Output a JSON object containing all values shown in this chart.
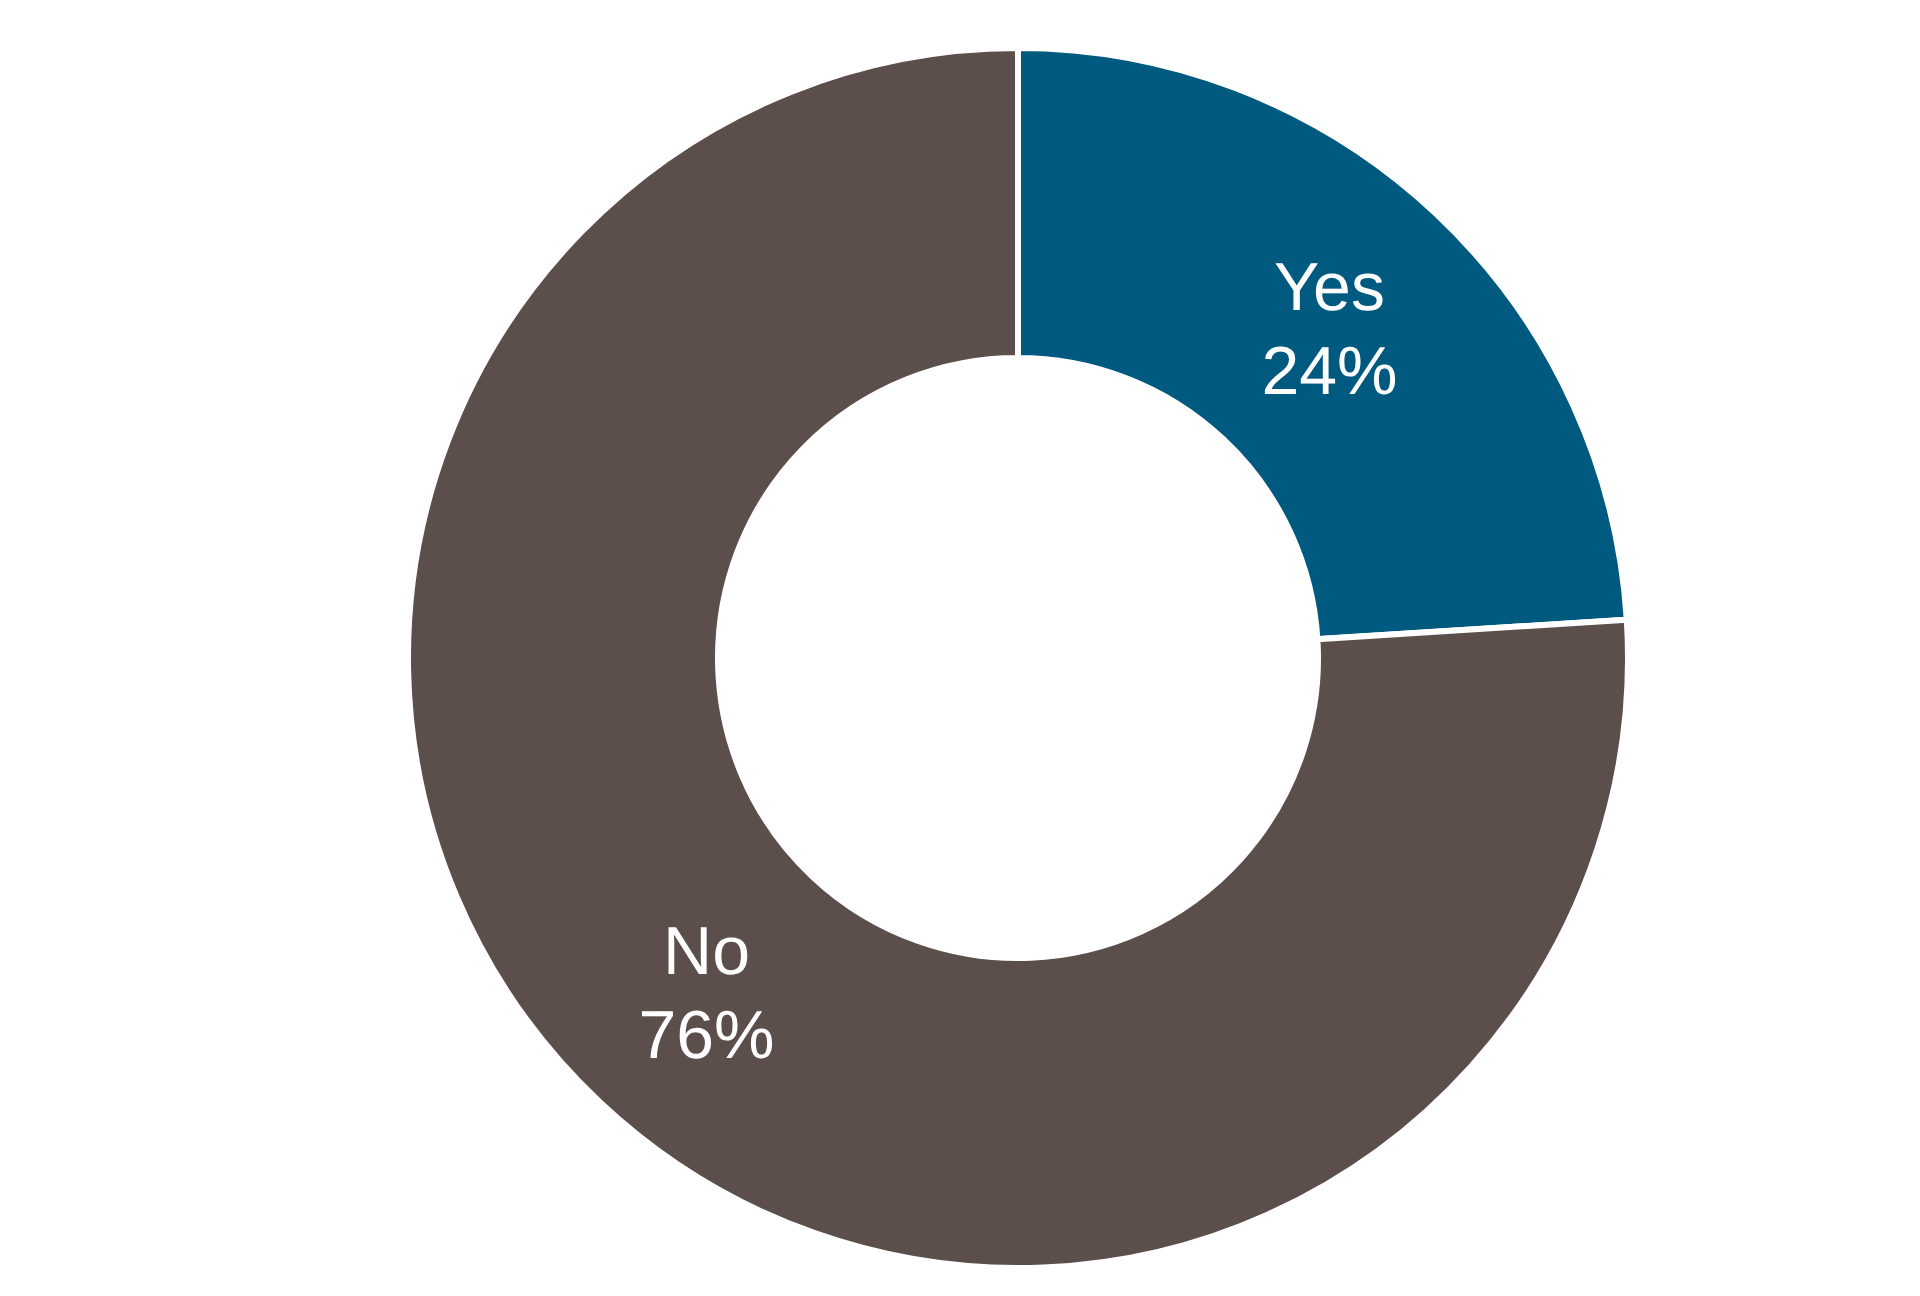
{
  "chart_data": {
    "type": "donut",
    "categories": [
      "Yes",
      "No"
    ],
    "values": [
      24,
      76
    ],
    "colors": [
      "#005a80",
      "#5b4e4b"
    ],
    "value_labels": [
      "24%",
      "76%"
    ],
    "legend": false
  }
}
